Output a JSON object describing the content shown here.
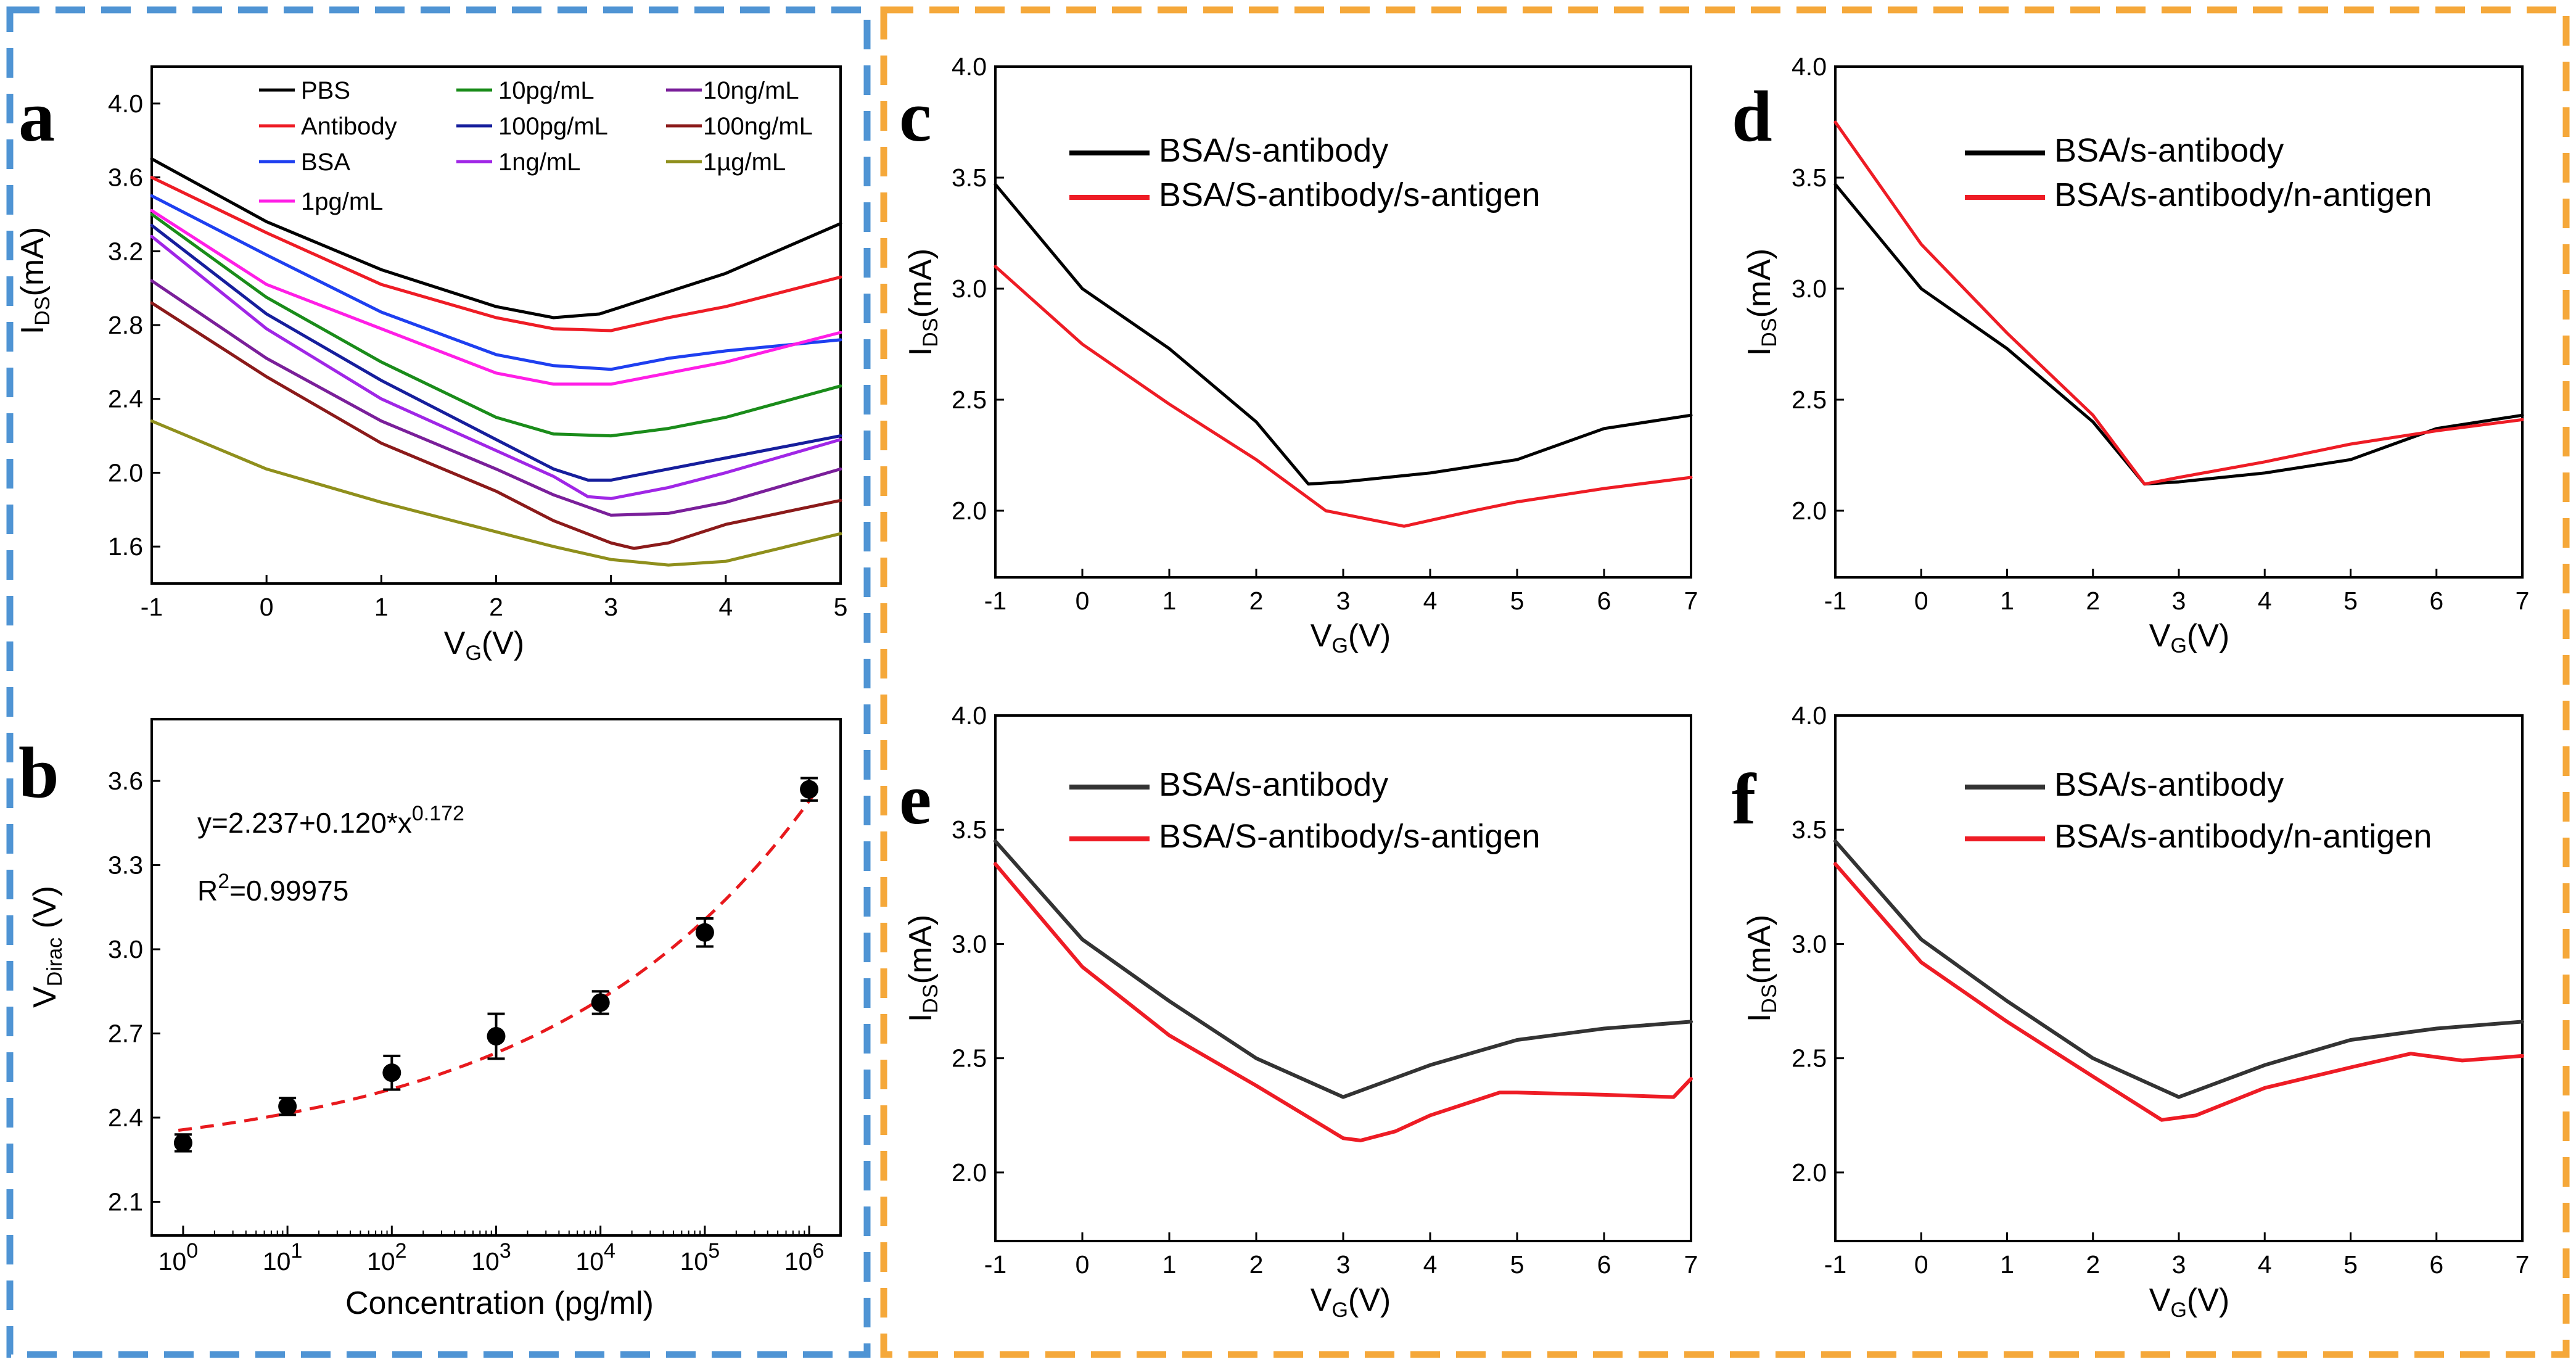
{
  "panels": {
    "a": "a",
    "b": "b",
    "c": "c",
    "d": "d",
    "e": "e",
    "f": "f"
  },
  "axis_text": {
    "I": "I",
    "DS": "DS",
    "mA": "(mA)",
    "V": "V",
    "G": "G",
    "Vunit": "(V)",
    "Dirac": "Dirac",
    "concentration": "Concentration (pg/ml)"
  },
  "equation": {
    "line1": "y=2.237+0.120*x",
    "exp": "0.172",
    "r_label": "R",
    "r_exp": "2",
    "r_val": "=0.99975"
  },
  "chart_data": [
    {
      "id": "a",
      "type": "line",
      "xlim": [
        -1,
        5
      ],
      "ylim": [
        1.4,
        4.2
      ],
      "xticks": [
        -1,
        0,
        1,
        2,
        3,
        4,
        5
      ],
      "yticks": [
        1.6,
        2.0,
        2.4,
        2.8,
        3.2,
        3.6,
        4.0
      ],
      "xlabel": "V_G(V)",
      "ylabel": "I_DS(mA)",
      "series": [
        {
          "name": "PBS",
          "color": "#000000",
          "points": [
            [
              -1,
              3.7
            ],
            [
              0,
              3.36
            ],
            [
              1,
              3.1
            ],
            [
              2,
              2.9
            ],
            [
              2.5,
              2.84
            ],
            [
              2.9,
              2.86
            ],
            [
              3.5,
              2.98
            ],
            [
              4,
              3.08
            ],
            [
              5,
              3.35
            ]
          ]
        },
        {
          "name": "Antibody",
          "color": "#ee1c25",
          "points": [
            [
              -1,
              3.6
            ],
            [
              0,
              3.3
            ],
            [
              1,
              3.02
            ],
            [
              2,
              2.84
            ],
            [
              2.5,
              2.78
            ],
            [
              3,
              2.77
            ],
            [
              3.5,
              2.84
            ],
            [
              4,
              2.9
            ],
            [
              5,
              3.06
            ]
          ]
        },
        {
          "name": "BSA",
          "color": "#1e3ff0",
          "points": [
            [
              -1,
              3.5
            ],
            [
              0,
              3.18
            ],
            [
              1,
              2.87
            ],
            [
              2,
              2.64
            ],
            [
              2.5,
              2.58
            ],
            [
              3,
              2.56
            ],
            [
              3.5,
              2.62
            ],
            [
              4,
              2.66
            ],
            [
              5,
              2.72
            ]
          ]
        },
        {
          "name": "1pg/mL",
          "color": "#ff1ee6",
          "points": [
            [
              -1,
              3.42
            ],
            [
              0,
              3.02
            ],
            [
              1,
              2.78
            ],
            [
              2,
              2.54
            ],
            [
              2.5,
              2.48
            ],
            [
              3,
              2.48
            ],
            [
              3.5,
              2.54
            ],
            [
              4,
              2.6
            ],
            [
              5,
              2.76
            ]
          ]
        },
        {
          "name": "10pg/mL",
          "color": "#1a8c1a",
          "points": [
            [
              -1,
              3.4
            ],
            [
              0,
              2.95
            ],
            [
              1,
              2.6
            ],
            [
              2,
              2.3
            ],
            [
              2.5,
              2.21
            ],
            [
              3,
              2.2
            ],
            [
              3.5,
              2.24
            ],
            [
              4,
              2.3
            ],
            [
              5,
              2.47
            ]
          ]
        },
        {
          "name": "100pg/mL",
          "color": "#161e9c",
          "points": [
            [
              -1,
              3.34
            ],
            [
              0,
              2.86
            ],
            [
              1,
              2.5
            ],
            [
              2,
              2.18
            ],
            [
              2.5,
              2.02
            ],
            [
              2.8,
              1.96
            ],
            [
              3,
              1.96
            ],
            [
              3.5,
              2.02
            ],
            [
              4,
              2.08
            ],
            [
              5,
              2.2
            ]
          ]
        },
        {
          "name": "1ng/mL",
          "color": "#a026e6",
          "points": [
            [
              -1,
              3.28
            ],
            [
              0,
              2.78
            ],
            [
              1,
              2.4
            ],
            [
              2,
              2.12
            ],
            [
              2.5,
              1.98
            ],
            [
              2.8,
              1.87
            ],
            [
              3,
              1.86
            ],
            [
              3.5,
              1.92
            ],
            [
              4,
              2.0
            ],
            [
              5,
              2.18
            ]
          ]
        },
        {
          "name": "10ng/mL",
          "color": "#7a1f9a",
          "points": [
            [
              -1,
              3.04
            ],
            [
              0,
              2.62
            ],
            [
              1,
              2.28
            ],
            [
              2,
              2.02
            ],
            [
              2.5,
              1.88
            ],
            [
              3,
              1.77
            ],
            [
              3.5,
              1.78
            ],
            [
              4,
              1.84
            ],
            [
              5,
              2.02
            ]
          ]
        },
        {
          "name": "100ng/mL",
          "color": "#8b1a1a",
          "points": [
            [
              -1,
              2.92
            ],
            [
              0,
              2.52
            ],
            [
              1,
              2.16
            ],
            [
              2,
              1.9
            ],
            [
              2.5,
              1.74
            ],
            [
              3,
              1.62
            ],
            [
              3.2,
              1.59
            ],
            [
              3.5,
              1.62
            ],
            [
              4,
              1.72
            ],
            [
              5,
              1.85
            ]
          ]
        },
        {
          "name": "1µg/mL",
          "color": "#8f8f1c",
          "points": [
            [
              -1,
              2.28
            ],
            [
              0,
              2.02
            ],
            [
              1,
              1.84
            ],
            [
              2,
              1.68
            ],
            [
              2.5,
              1.6
            ],
            [
              3,
              1.53
            ],
            [
              3.5,
              1.5
            ],
            [
              4,
              1.52
            ],
            [
              5,
              1.67
            ]
          ]
        }
      ]
    },
    {
      "id": "b",
      "type": "scatter",
      "xscale": "log",
      "xlim": [
        0.5,
        2000000
      ],
      "ylim": [
        1.98,
        3.82
      ],
      "xticks": [
        1,
        10,
        100,
        1000,
        10000,
        100000,
        1000000
      ],
      "xtick_base": "10",
      "xtick_exps": [
        "0",
        "1",
        "2",
        "3",
        "4",
        "5",
        "6"
      ],
      "yticks": [
        2.1,
        2.4,
        2.7,
        3.0,
        3.3,
        3.6
      ],
      "xlabel": "Concentration (pg/ml)",
      "ylabel": "V_Dirac (V)",
      "points": [
        {
          "x": 1,
          "y": 2.31,
          "err": 0.03
        },
        {
          "x": 10,
          "y": 2.44,
          "err": 0.03
        },
        {
          "x": 100,
          "y": 2.56,
          "err": 0.06
        },
        {
          "x": 1000,
          "y": 2.69,
          "err": 0.08
        },
        {
          "x": 10000,
          "y": 2.81,
          "err": 0.04
        },
        {
          "x": 100000,
          "y": 3.06,
          "err": 0.05
        },
        {
          "x": 1000000,
          "y": 3.57,
          "err": 0.04
        }
      ],
      "fit": {
        "a": 2.237,
        "b": 0.12,
        "c": 0.172,
        "color": "#e8191d"
      }
    },
    {
      "id": "c",
      "type": "line",
      "xlim": [
        -1,
        7
      ],
      "ylim": [
        1.7,
        4.0
      ],
      "xticks": [
        -1,
        0,
        1,
        2,
        3,
        4,
        5,
        6,
        7
      ],
      "yticks": [
        2.0,
        2.5,
        3.0,
        3.5,
        4.0
      ],
      "xlabel": "V_G(V)",
      "ylabel": "I_DS(mA)",
      "series": [
        {
          "name": "BSA/s-antibody",
          "color": "#000000",
          "points": [
            [
              -1,
              3.47
            ],
            [
              0,
              3.0
            ],
            [
              1,
              2.73
            ],
            [
              2,
              2.4
            ],
            [
              2.6,
              2.12
            ],
            [
              3,
              2.13
            ],
            [
              4,
              2.17
            ],
            [
              5,
              2.23
            ],
            [
              6,
              2.37
            ],
            [
              7,
              2.43
            ]
          ]
        },
        {
          "name": "BSA/S-antibody/s-antigen",
          "color": "#ee1c25",
          "points": [
            [
              -1,
              3.1
            ],
            [
              0,
              2.75
            ],
            [
              1,
              2.48
            ],
            [
              2,
              2.23
            ],
            [
              2.8,
              2.0
            ],
            [
              3.7,
              1.93
            ],
            [
              4.5,
              2.0
            ],
            [
              5,
              2.04
            ],
            [
              6,
              2.1
            ],
            [
              7,
              2.15
            ]
          ]
        }
      ]
    },
    {
      "id": "d",
      "type": "line",
      "xlim": [
        -1,
        7
      ],
      "ylim": [
        1.7,
        4.0
      ],
      "xticks": [
        -1,
        0,
        1,
        2,
        3,
        4,
        5,
        6,
        7
      ],
      "yticks": [
        2.0,
        2.5,
        3.0,
        3.5,
        4.0
      ],
      "xlabel": "V_G(V)",
      "ylabel": "I_DS(mA)",
      "series": [
        {
          "name": "BSA/s-antibody",
          "color": "#000000",
          "points": [
            [
              -1,
              3.47
            ],
            [
              0,
              3.0
            ],
            [
              1,
              2.73
            ],
            [
              2,
              2.4
            ],
            [
              2.6,
              2.12
            ],
            [
              3,
              2.13
            ],
            [
              4,
              2.17
            ],
            [
              5,
              2.23
            ],
            [
              6,
              2.37
            ],
            [
              7,
              2.43
            ]
          ]
        },
        {
          "name": "BSA/s-antibody/n-antigen",
          "color": "#ee1c25",
          "points": [
            [
              -1,
              3.75
            ],
            [
              0,
              3.2
            ],
            [
              1,
              2.8
            ],
            [
              2,
              2.43
            ],
            [
              2.6,
              2.12
            ],
            [
              3,
              2.15
            ],
            [
              4,
              2.22
            ],
            [
              5,
              2.3
            ],
            [
              6,
              2.36
            ],
            [
              7,
              2.41
            ]
          ]
        }
      ]
    },
    {
      "id": "e",
      "type": "line",
      "xlim": [
        -1,
        7
      ],
      "ylim": [
        1.7,
        4.0
      ],
      "xticks": [
        -1,
        0,
        1,
        2,
        3,
        4,
        5,
        6,
        7
      ],
      "yticks": [
        2.0,
        2.5,
        3.0,
        3.5,
        4.0
      ],
      "xlabel": "V_G(V)",
      "ylabel": "I_DS(mA)",
      "series": [
        {
          "name": "BSA/s-antibody",
          "color": "#333333",
          "points": [
            [
              -1,
              3.45
            ],
            [
              0,
              3.02
            ],
            [
              1,
              2.75
            ],
            [
              2,
              2.5
            ],
            [
              3,
              2.33
            ],
            [
              4,
              2.47
            ],
            [
              5,
              2.58
            ],
            [
              6,
              2.63
            ],
            [
              7,
              2.66
            ]
          ]
        },
        {
          "name": "BSA/S-antibody/s-antigen",
          "color": "#ee1c25",
          "points": [
            [
              -1,
              3.35
            ],
            [
              0,
              2.9
            ],
            [
              1,
              2.6
            ],
            [
              2,
              2.38
            ],
            [
              3,
              2.15
            ],
            [
              3.2,
              2.14
            ],
            [
              3.6,
              2.18
            ],
            [
              4,
              2.25
            ],
            [
              4.8,
              2.35
            ],
            [
              5,
              2.35
            ],
            [
              6,
              2.34
            ],
            [
              6.8,
              2.33
            ],
            [
              7,
              2.41
            ]
          ]
        }
      ]
    },
    {
      "id": "f",
      "type": "line",
      "xlim": [
        -1,
        7
      ],
      "ylim": [
        1.7,
        4.0
      ],
      "xticks": [
        -1,
        0,
        1,
        2,
        3,
        4,
        5,
        6,
        7
      ],
      "yticks": [
        2.0,
        2.5,
        3.0,
        3.5,
        4.0
      ],
      "xlabel": "V_G(V)",
      "ylabel": "I_DS(mA)",
      "series": [
        {
          "name": "BSA/s-antibody",
          "color": "#333333",
          "points": [
            [
              -1,
              3.45
            ],
            [
              0,
              3.02
            ],
            [
              1,
              2.75
            ],
            [
              2,
              2.5
            ],
            [
              3,
              2.33
            ],
            [
              4,
              2.47
            ],
            [
              5,
              2.58
            ],
            [
              6,
              2.63
            ],
            [
              7,
              2.66
            ]
          ]
        },
        {
          "name": "BSA/s-antibody/n-antigen",
          "color": "#ee1c25",
          "points": [
            [
              -1,
              3.35
            ],
            [
              0,
              2.92
            ],
            [
              1,
              2.66
            ],
            [
              2,
              2.42
            ],
            [
              2.8,
              2.23
            ],
            [
              3.2,
              2.25
            ],
            [
              4,
              2.37
            ],
            [
              5,
              2.46
            ],
            [
              5.7,
              2.52
            ],
            [
              6.3,
              2.49
            ],
            [
              7,
              2.51
            ]
          ]
        }
      ]
    }
  ]
}
